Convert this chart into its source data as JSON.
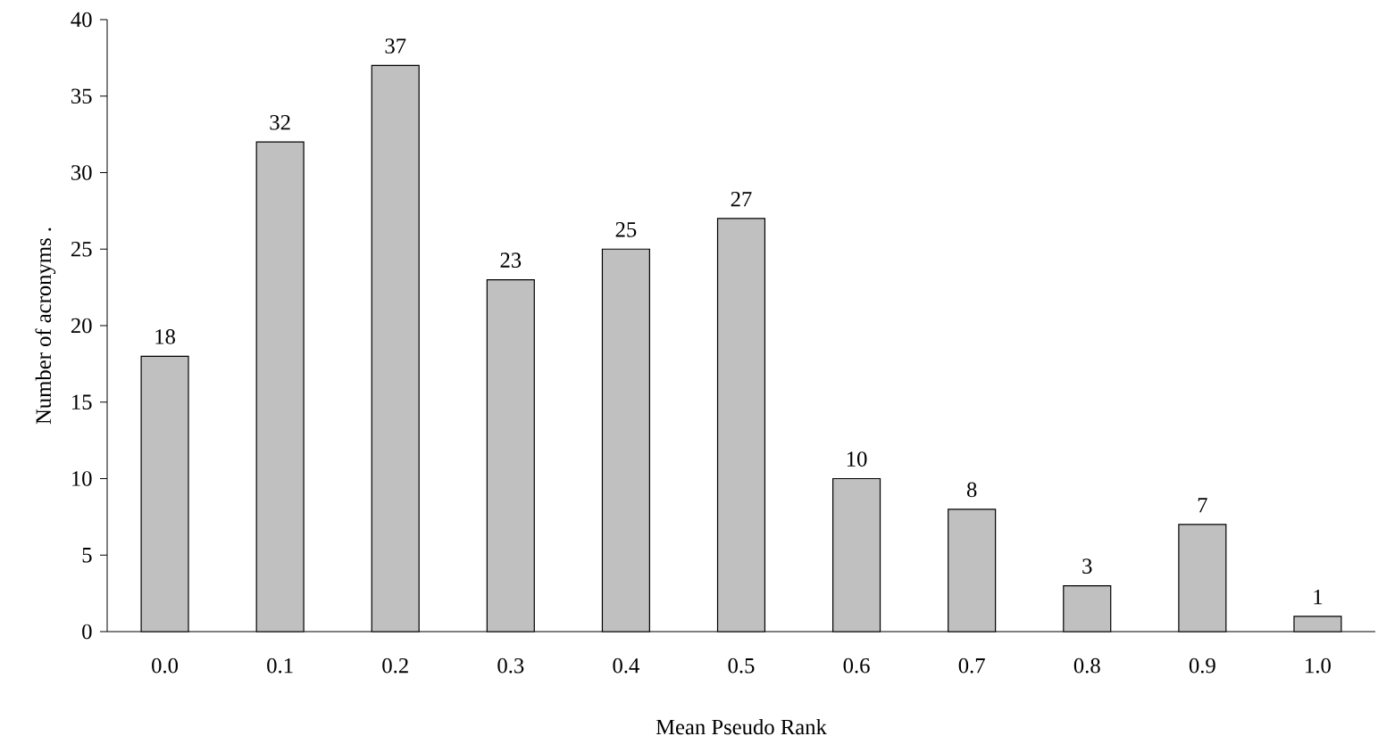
{
  "chart_data": {
    "type": "bar",
    "xlabel": "Mean Pseudo Rank",
    "ylabel": "Number of acronyms   .",
    "categories": [
      "0.0",
      "0.1",
      "0.2",
      "0.3",
      "0.4",
      "0.5",
      "0.6",
      "0.7",
      "0.8",
      "0.9",
      "1.0"
    ],
    "values": [
      18,
      32,
      37,
      23,
      25,
      27,
      10,
      8,
      3,
      7,
      1
    ],
    "color": "#c0c0c0",
    "ylim": [
      0,
      40
    ],
    "yticks": [
      0,
      5,
      10,
      15,
      20,
      25,
      30,
      35,
      40
    ],
    "grid": false,
    "data_labels": true
  }
}
